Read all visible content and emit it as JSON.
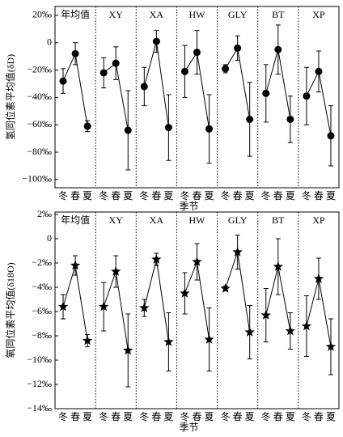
{
  "chart_data": [
    {
      "type": "errorbar",
      "marker": "circle",
      "color": "#000000",
      "y_label": "氢同位素平均值(δD)",
      "x_label": "季节",
      "seasons": [
        "冬",
        "春",
        "夏"
      ],
      "ylim": [
        -106,
        26.5
      ],
      "yticks": [
        {
          "value": 20,
          "label": "20‰"
        },
        0,
        {
          "value": -20,
          "label": "−20‰"
        },
        {
          "value": -40,
          "label": "−40‰"
        },
        {
          "value": -60,
          "label": "−60‰"
        },
        {
          "value": -80,
          "label": "−80‰"
        },
        {
          "value": -100,
          "label": "−100‰"
        }
      ],
      "series": [
        {
          "name": "年均值",
          "values": [
            -28,
            -8,
            -61
          ],
          "errors": [
            9,
            8,
            4
          ]
        },
        {
          "name": "XY",
          "values": [
            -22,
            -15,
            -64
          ],
          "errors": [
            11,
            12,
            29
          ]
        },
        {
          "name": "XA",
          "values": [
            -32,
            1,
            -62
          ],
          "errors": [
            14,
            8,
            24
          ]
        },
        {
          "name": "HW",
          "values": [
            -21,
            -7,
            -63
          ],
          "errors": [
            19,
            16,
            25
          ]
        },
        {
          "name": "GLY",
          "values": [
            -19,
            -4,
            -56
          ],
          "errors": [
            3,
            9,
            27
          ]
        },
        {
          "name": "BT",
          "values": [
            -37,
            -5,
            -56
          ],
          "errors": [
            21,
            18,
            17
          ]
        },
        {
          "name": "XP",
          "values": [
            -39,
            -21,
            -68
          ],
          "errors": [
            21,
            15,
            22
          ]
        }
      ]
    },
    {
      "type": "errorbar",
      "marker": "star",
      "color": "#000000",
      "y_label": "氧同位素平均值(δ18O)",
      "x_label": "季节",
      "seasons": [
        "冬",
        "春",
        "夏"
      ],
      "ylim": [
        -14,
        2.2
      ],
      "yticks": [
        {
          "value": 2,
          "label": "2‰"
        },
        0,
        {
          "value": -2,
          "label": "−2‰"
        },
        {
          "value": -4,
          "label": "−4‰"
        },
        {
          "value": -6,
          "label": "−6‰"
        },
        {
          "value": -8,
          "label": "−8‰"
        },
        {
          "value": -10,
          "label": "−10‰"
        },
        {
          "value": -12,
          "label": "−12‰"
        },
        {
          "value": -14,
          "label": "−14‰"
        }
      ],
      "series": [
        {
          "name": "年均值",
          "values": [
            -5.6,
            -2.2,
            -8.4
          ],
          "errors": [
            1,
            0.8,
            0.5
          ]
        },
        {
          "name": "XY",
          "values": [
            -5.6,
            -2.7,
            -9.2
          ],
          "errors": [
            2,
            1.3,
            3
          ]
        },
        {
          "name": "XA",
          "values": [
            -5.7,
            -1.7,
            -8.5
          ],
          "errors": [
            0.7,
            0.5,
            2.4
          ]
        },
        {
          "name": "HW",
          "values": [
            -4.5,
            -1.9,
            -8.3
          ],
          "errors": [
            1.7,
            1.5,
            2.6
          ]
        },
        {
          "name": "GLY",
          "values": [
            -4.1,
            -1.1,
            -7.7
          ],
          "errors": [
            0.2,
            1.4,
            2.2
          ]
        },
        {
          "name": "BT",
          "values": [
            -6.3,
            -2.3,
            -7.6
          ],
          "errors": [
            2.2,
            2.3,
            1.5
          ]
        },
        {
          "name": "XP",
          "values": [
            -7.2,
            -3.3,
            -8.9
          ],
          "errors": [
            2.5,
            1.7,
            2.3
          ]
        }
      ]
    }
  ]
}
